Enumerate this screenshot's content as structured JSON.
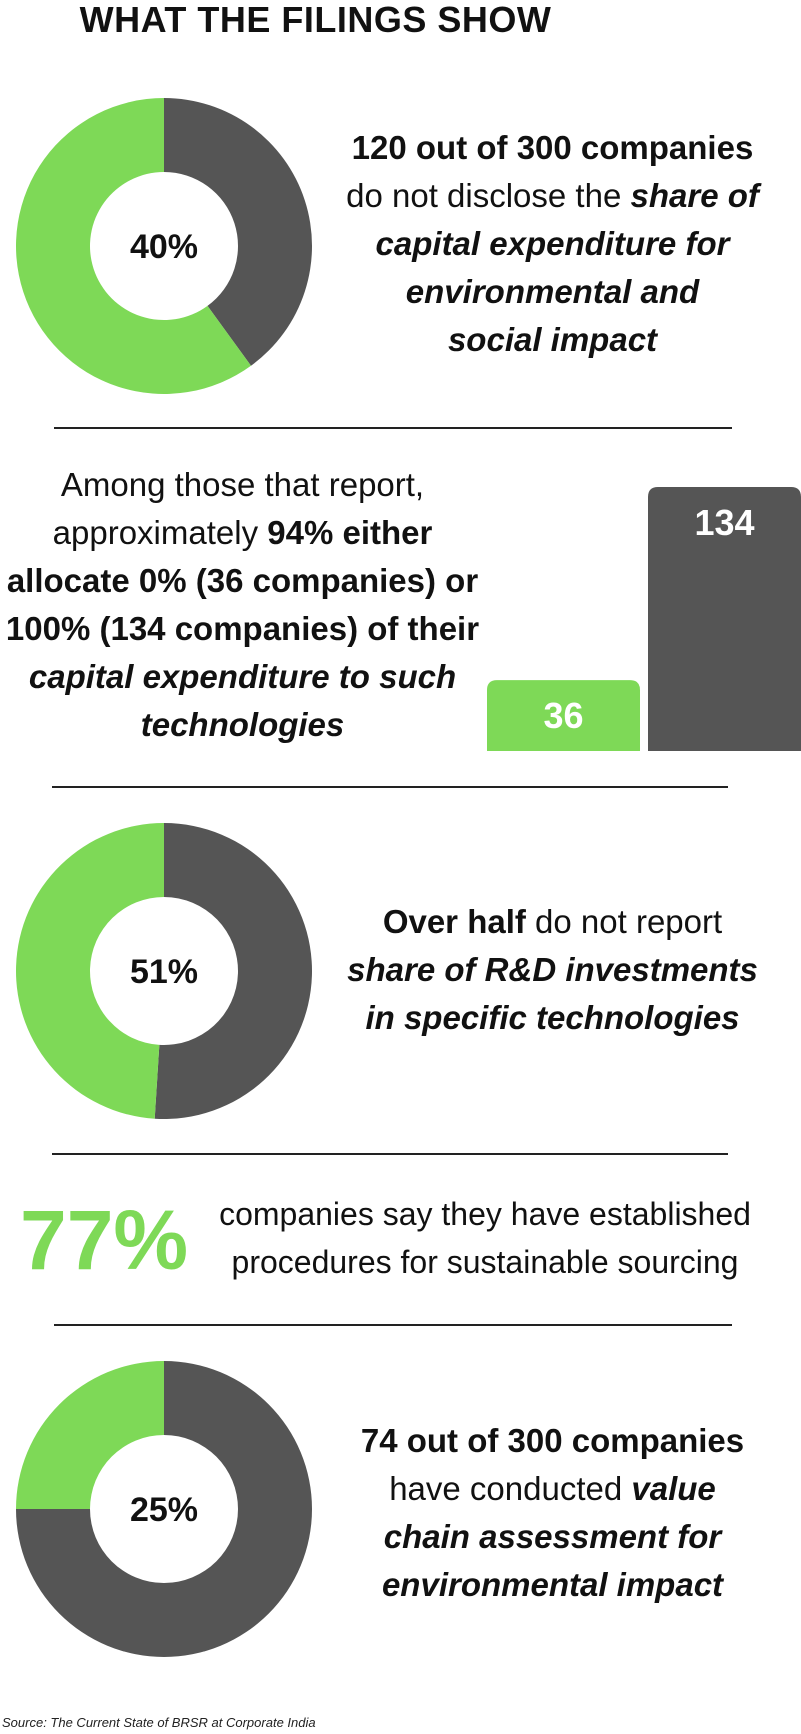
{
  "title": "WHAT THE FILINGS SHOW",
  "colors": {
    "green": "#7ed957",
    "dark": "#555555"
  },
  "chart_data": [
    {
      "type": "pie",
      "variant": "donut",
      "center_label": "40%",
      "slices": [
        {
          "label": "do not disclose",
          "value": 40,
          "color": "#555555"
        },
        {
          "label": "disclose",
          "value": 60,
          "color": "#7ed957"
        }
      ]
    },
    {
      "type": "bar",
      "categories": [
        "0%",
        "100%"
      ],
      "values": [
        36,
        134
      ],
      "data_labels": [
        "36",
        "134"
      ],
      "colors": [
        "#7ed957",
        "#555555"
      ]
    },
    {
      "type": "pie",
      "variant": "donut",
      "center_label": "51%",
      "slices": [
        {
          "label": "do not report",
          "value": 51,
          "color": "#555555"
        },
        {
          "label": "report",
          "value": 49,
          "color": "#7ed957"
        }
      ]
    },
    {
      "type": "pie",
      "variant": "donut",
      "center_label": "25%",
      "slices": [
        {
          "label": "have not conducted",
          "value": 75,
          "color": "#555555"
        },
        {
          "label": "have conducted",
          "value": 25,
          "color": "#7ed957"
        }
      ]
    }
  ],
  "stat1": {
    "line1": "120 out of 300 companies",
    "line2_plain": "do not disclose the ",
    "line2_emph": "share of",
    "line3": "capital expenditure for",
    "line4": "environmental and",
    "line5": "social impact"
  },
  "stat2": {
    "line1": "Among those that report,",
    "line2_plain": "approximately ",
    "line2_bold": "94% either",
    "line3": "allocate 0% (36 companies) or",
    "line4": "100% (134 companies) of their",
    "line5": "capital expenditure to such",
    "line6": "technologies"
  },
  "stat3": {
    "line1_bold": "Over half",
    "line1_plain": " do not report",
    "line2": "share of R&D investments",
    "line3": "in specific technologies"
  },
  "stat4": {
    "percent": "77%",
    "line1": "companies say they have established",
    "line2": "procedures for sustainable sourcing"
  },
  "stat5": {
    "line1": "74 out of 300 companies",
    "line2_plain": "have conducted ",
    "line2_emph": "value",
    "line3": "chain assessment for",
    "line4": "environmental impact"
  },
  "source": "Source: The Current State of BRSR at Corporate India"
}
